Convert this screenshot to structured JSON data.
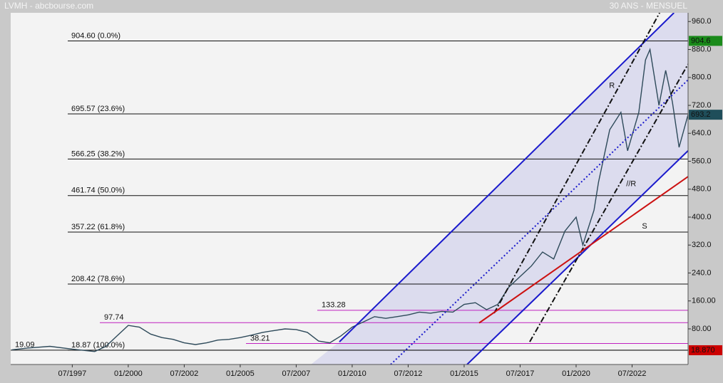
{
  "chart_data": {
    "type": "line",
    "title": "LVMH - abcbourse.com",
    "subtitle": "30 ANS - MENSUEL",
    "xlim": [
      1994.75,
      2025.0
    ],
    "ylim": [
      -22,
      985
    ],
    "xticks": [
      {
        "value": 1997.5,
        "label": "07/1997"
      },
      {
        "value": 2000.0,
        "label": "01/2000"
      },
      {
        "value": 2002.5,
        "label": "07/2002"
      },
      {
        "value": 2005.0,
        "label": "01/2005"
      },
      {
        "value": 2007.5,
        "label": "07/2007"
      },
      {
        "value": 2010.0,
        "label": "01/2010"
      },
      {
        "value": 2012.5,
        "label": "07/2012"
      },
      {
        "value": 2015.0,
        "label": "01/2015"
      },
      {
        "value": 2017.5,
        "label": "07/2017"
      },
      {
        "value": 2020.0,
        "label": "01/2020"
      },
      {
        "value": 2022.5,
        "label": "07/2022"
      }
    ],
    "yticks": [
      {
        "value": 80,
        "label": "80.00"
      },
      {
        "value": 160,
        "label": "160.00"
      },
      {
        "value": 240,
        "label": "240.0"
      },
      {
        "value": 320,
        "label": "320.0"
      },
      {
        "value": 400,
        "label": "400.0"
      },
      {
        "value": 480,
        "label": "480.0"
      },
      {
        "value": 560,
        "label": "560.0"
      },
      {
        "value": 640,
        "label": "640.0"
      },
      {
        "value": 720,
        "label": "720.0"
      },
      {
        "value": 800,
        "label": "800.0"
      },
      {
        "value": 880,
        "label": "880.0"
      },
      {
        "value": 960,
        "label": "960.0"
      }
    ],
    "series": [
      {
        "name": "LVMH",
        "color": "#2e4a5a",
        "x": [
          1994.8,
          1995.5,
          1996.5,
          1997.5,
          1998.5,
          1999.0,
          1999.5,
          2000.0,
          2000.5,
          2001.0,
          2001.5,
          2002.0,
          2002.5,
          2003.0,
          2003.5,
          2004.0,
          2004.5,
          2005.0,
          2005.5,
          2006.0,
          2006.5,
          2007.0,
          2007.5,
          2008.0,
          2008.5,
          2009.0,
          2009.5,
          2010.0,
          2010.5,
          2011.0,
          2011.5,
          2012.0,
          2012.5,
          2013.0,
          2013.5,
          2014.0,
          2014.5,
          2015.0,
          2015.5,
          2016.0,
          2016.5,
          2017.0,
          2017.5,
          2018.0,
          2018.5,
          2019.0,
          2019.5,
          2020.0,
          2020.3,
          2020.8,
          2021.0,
          2021.5,
          2022.0,
          2022.3,
          2022.8,
          2023.1,
          2023.3,
          2023.7,
          2024.0,
          2024.3,
          2024.6,
          2025.0
        ],
        "values": [
          20,
          25,
          30,
          22,
          15,
          30,
          60,
          90,
          85,
          65,
          55,
          50,
          40,
          35,
          40,
          48,
          50,
          55,
          62,
          70,
          75,
          80,
          78,
          70,
          45,
          40,
          60,
          85,
          100,
          115,
          110,
          115,
          120,
          128,
          125,
          130,
          128,
          150,
          155,
          135,
          150,
          200,
          230,
          260,
          300,
          280,
          360,
          400,
          320,
          420,
          500,
          650,
          700,
          590,
          700,
          850,
          880,
          720,
          820,
          730,
          600,
          693.2
        ]
      }
    ],
    "fib_levels": [
      {
        "value": 904.6,
        "label": "904.60  (0.0%)"
      },
      {
        "value": 695.57,
        "label": "695.57  (23.6%)"
      },
      {
        "value": 566.25,
        "label": "566.25  (38.2%)"
      },
      {
        "value": 461.74,
        "label": "461.74  (50.0%)"
      },
      {
        "value": 357.22,
        "label": "357.22  (61.8%)"
      },
      {
        "value": 208.42,
        "label": "208.42  (78.6%)"
      },
      {
        "value": 18.87,
        "label": "18.87  (100.0%)"
      }
    ],
    "fib_color": "#111111",
    "levels": [
      {
        "value": 133.28,
        "label": "133.28",
        "color": "#c020c0"
      },
      {
        "value": 97.74,
        "label": "97.74",
        "color": "#c020c0"
      },
      {
        "value": 38.21,
        "label": "38.21",
        "color": "#c020c0"
      },
      {
        "value": 19.09,
        "label": "19.09",
        "color": "#111111"
      }
    ],
    "price_markers": [
      {
        "value": 904.6,
        "label": "904.6",
        "color": "#1a8a1a"
      },
      {
        "value": 693.2,
        "label": "693.2",
        "color": "#1f4e5a"
      },
      {
        "value": 18.87,
        "label": "18.870",
        "color": "#cc0000"
      }
    ],
    "trendlines": [
      {
        "x": [
          2009.43,
          2024.37
        ],
        "y": [
          43,
          985
        ],
        "color": "#1a1acc",
        "style": "solid"
      },
      {
        "x": [
          2015.13,
          2025.0
        ],
        "y": [
          -22,
          590
        ],
        "color": "#1a1acc",
        "style": "solid"
      },
      {
        "x": [
          2011.72,
          2025.0
        ],
        "y": [
          -22,
          793
        ],
        "color": "#1a1acc",
        "style": "dotted"
      },
      {
        "x": [
          2016.34,
          2023.73
        ],
        "y": [
          125,
          985
        ],
        "color": "#111111",
        "style": "dashdot"
      },
      {
        "x": [
          2017.93,
          2025.0
        ],
        "y": [
          43,
          838
        ],
        "color": "#111111",
        "style": "dashdot"
      },
      {
        "x": [
          2015.67,
          2025.0
        ],
        "y": [
          97,
          516
        ],
        "color": "#cc1111",
        "style": "solid"
      }
    ],
    "channel_fill": "#d6d6ec",
    "annotations": [
      {
        "text": "R",
        "x": 2021.6,
        "y": 776,
        "color": "#111111"
      },
      {
        "text": "//R",
        "x": 2022.46,
        "y": 495,
        "color": "#111111"
      },
      {
        "text": "S",
        "x": 2023.06,
        "y": 373,
        "color": "#cc1111"
      }
    ]
  }
}
